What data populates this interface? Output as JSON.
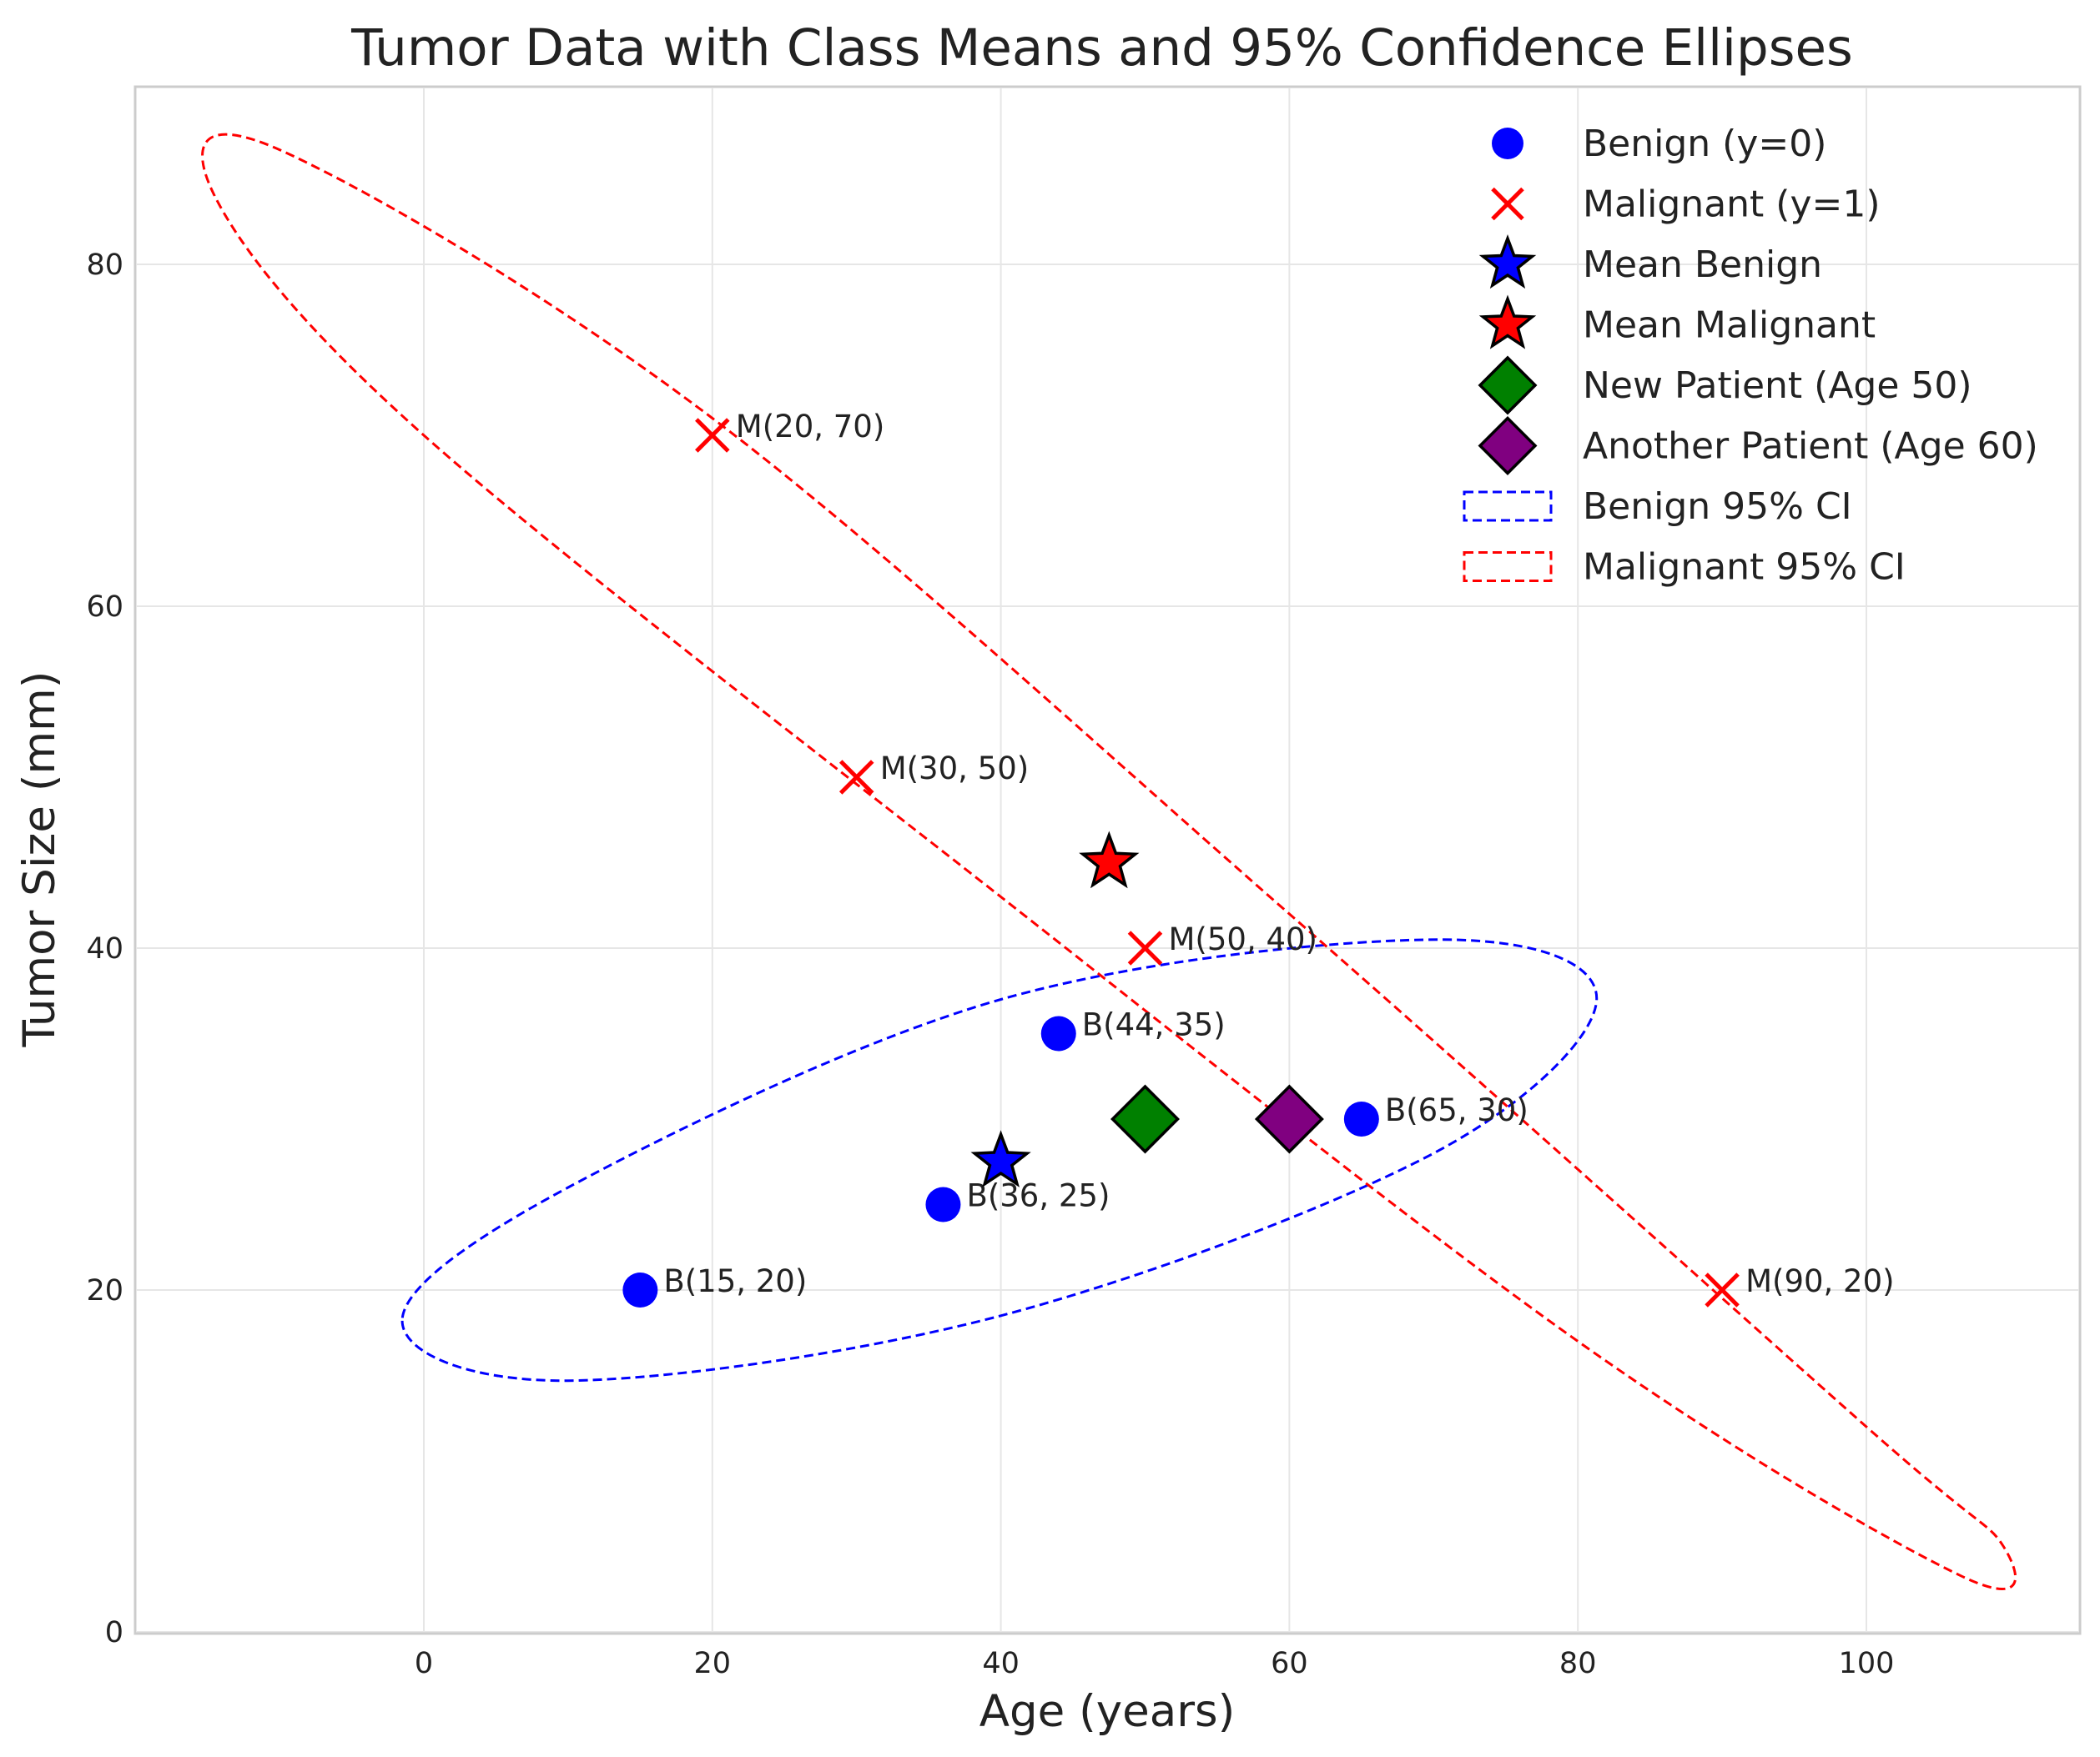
{
  "chart_data": {
    "type": "scatter",
    "title": "Tumor Data with Class Means and 95% Confidence Ellipses",
    "xlabel": "Age (years)",
    "ylabel": "Tumor Size (mm)",
    "xlim": [
      -20,
      115
    ],
    "ylim": [
      0,
      90
    ],
    "xticks": [
      0,
      20,
      40,
      60,
      80,
      100
    ],
    "yticks": [
      0,
      20,
      40,
      60,
      80
    ],
    "grid": true,
    "legend_position": "top-right",
    "colors": {
      "benign": "#0000ff",
      "malignant": "#ff0000",
      "new_patient": "#008000",
      "another_patient": "#800080"
    },
    "series": [
      {
        "name": "Benign (y=0)",
        "marker": "circle",
        "color": "#0000ff",
        "points": [
          {
            "x": 15,
            "y": 20,
            "label": "B(15, 20)"
          },
          {
            "x": 36,
            "y": 25,
            "label": "B(36, 25)"
          },
          {
            "x": 44,
            "y": 35,
            "label": "B(44, 35)"
          },
          {
            "x": 65,
            "y": 30,
            "label": "B(65, 30)"
          }
        ]
      },
      {
        "name": "Malignant (y=1)",
        "marker": "x",
        "color": "#ff0000",
        "points": [
          {
            "x": 20,
            "y": 70,
            "label": "M(20, 70)"
          },
          {
            "x": 30,
            "y": 50,
            "label": "M(30, 50)"
          },
          {
            "x": 50,
            "y": 40,
            "label": "M(50, 40)"
          },
          {
            "x": 90,
            "y": 20,
            "label": "M(90, 20)"
          }
        ]
      },
      {
        "name": "Mean Benign",
        "marker": "star",
        "color": "#0000ff",
        "points": [
          {
            "x": 40,
            "y": 27.5
          }
        ]
      },
      {
        "name": "Mean Malignant",
        "marker": "star",
        "color": "#ff0000",
        "points": [
          {
            "x": 47.5,
            "y": 45
          }
        ]
      },
      {
        "name": "New Patient (Age 50)",
        "marker": "diamond",
        "color": "#008000",
        "points": [
          {
            "x": 50,
            "y": 30
          }
        ]
      },
      {
        "name": "Another Patient (Age 60)",
        "marker": "diamond",
        "color": "#800080",
        "points": [
          {
            "x": 60,
            "y": 30
          }
        ]
      }
    ],
    "ellipses": [
      {
        "name": "Benign 95% CI",
        "color": "#0000ff",
        "center": [
          40,
          27.5
        ],
        "points": [
          [
            -1.5,
            18.2
          ],
          [
            10,
            14.7
          ],
          [
            40,
            18.5
          ],
          [
            70,
            28
          ],
          [
            81.3,
            37
          ],
          [
            70.5,
            40.5
          ],
          [
            40,
            37
          ],
          [
            10,
            26
          ]
        ]
      },
      {
        "name": "Malignant 95% CI",
        "color": "#ff0000",
        "center": [
          47.5,
          45
        ],
        "points": [
          [
            -14.5,
            84
          ],
          [
            -10,
            86.7
          ],
          [
            20,
            71
          ],
          [
            60,
            42
          ],
          [
            100,
            12
          ],
          [
            109.5,
            5
          ],
          [
            106.5,
            3.3
          ],
          [
            80,
            17
          ],
          [
            40,
            43
          ],
          [
            0,
            70
          ]
        ]
      }
    ],
    "legend": [
      {
        "label": "Benign (y=0)",
        "symbol": "circle",
        "color": "#0000ff"
      },
      {
        "label": "Malignant (y=1)",
        "symbol": "x",
        "color": "#ff0000"
      },
      {
        "label": "Mean Benign",
        "symbol": "star",
        "color": "#0000ff"
      },
      {
        "label": "Mean Malignant",
        "symbol": "star",
        "color": "#ff0000"
      },
      {
        "label": "New Patient (Age 50)",
        "symbol": "diamond",
        "color": "#008000"
      },
      {
        "label": "Another Patient (Age 60)",
        "symbol": "diamond",
        "color": "#800080"
      },
      {
        "label": "Benign 95% CI",
        "symbol": "dashed-rect",
        "color": "#0000ff"
      },
      {
        "label": "Malignant 95% CI",
        "symbol": "dashed-rect",
        "color": "#ff0000"
      }
    ]
  }
}
